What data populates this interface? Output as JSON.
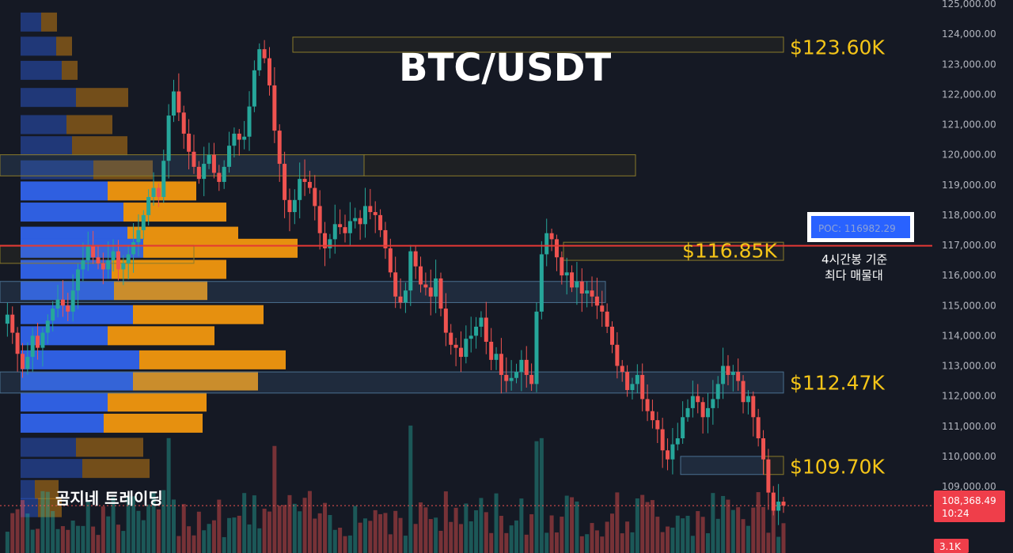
{
  "title": "BTC/USDT",
  "brand": "곰지네 트레이딩",
  "poc_label": "POC: 116982.29",
  "poc_note_line1": "4시간봉 기준",
  "poc_note_line2": "최다 매물대",
  "current_price": "108,368.49",
  "countdown": "10:24",
  "volume_badge": "3.1K",
  "colors": {
    "background": "#151924",
    "up": "#26a69a",
    "down": "#ef5350",
    "level_gold": "#f5c518",
    "poc_line": "#e53935",
    "profile_blue": "#2f5fe0",
    "profile_orange": "#e6900f"
  },
  "chart_data": {
    "type": "candlestick",
    "title": "BTC/USDT",
    "y_axis": {
      "min": 107000,
      "max": 125000,
      "tick_labels": [
        "125,000.00",
        "124,000.00",
        "123,000.00",
        "122,000.00",
        "121,000.00",
        "120,000.00",
        "119,000.00",
        "118,000.00",
        "117,000.00",
        "116,000.00",
        "115,000.00",
        "114,000.00",
        "113,000.00",
        "112,000.00",
        "111,000.00",
        "110,000.00",
        "109,000.00"
      ]
    },
    "level_labels": [
      {
        "text": "$123.60K",
        "price": 123600
      },
      {
        "text": "$116.85K",
        "price": 116850
      },
      {
        "text": "$112.47K",
        "price": 112470
      },
      {
        "text": "$109.70K",
        "price": 109700
      }
    ],
    "poc_price": 116982.29,
    "last_price": 108368.49,
    "price_path": [
      114400,
      114700,
      114100,
      113400,
      112900,
      113300,
      114000,
      113600,
      114100,
      114500,
      114900,
      115200,
      115000,
      114800,
      115500,
      116200,
      116500,
      117000,
      116600,
      116400,
      116200,
      116500,
      116800,
      116200,
      116400,
      116700,
      117100,
      117500,
      118000,
      118600,
      118900,
      118600,
      119800,
      121300,
      122100,
      121400,
      120700,
      120100,
      119600,
      119200,
      119700,
      120000,
      119400,
      119100,
      119600,
      120300,
      120700,
      120500,
      120600,
      121600,
      122800,
      123500,
      123200,
      122300,
      120800,
      119700,
      118500,
      118100,
      118500,
      119200,
      119100,
      118900,
      118300,
      117400,
      116900,
      117200,
      117700,
      117600,
      117400,
      117800,
      117900,
      117700,
      118300,
      118100,
      118000,
      117500,
      116900,
      116100,
      115300,
      115100,
      115500,
      116800,
      116300,
      115700,
      115600,
      115300,
      115900,
      114900,
      114100,
      113700,
      113600,
      113300,
      113900,
      114000,
      114300,
      114600,
      113800,
      113200,
      113400,
      112700,
      112500,
      112600,
      112800,
      113200,
      112700,
      112400,
      114800,
      116700,
      117400,
      117200,
      116600,
      116000,
      116100,
      115600,
      115800,
      115400,
      115500,
      115300,
      115000,
      114800,
      114300,
      113700,
      113000,
      112800,
      112200,
      112400,
      112700,
      111900,
      111500,
      111200,
      110900,
      110200,
      109900,
      110400,
      110600,
      111300,
      111600,
      112000,
      111800,
      111300,
      111600,
      111900,
      112400,
      113000,
      112700,
      112800,
      112500,
      111800,
      112000,
      111300,
      110600,
      109900,
      108800,
      108200,
      108500,
      108368.49
    ]
  }
}
